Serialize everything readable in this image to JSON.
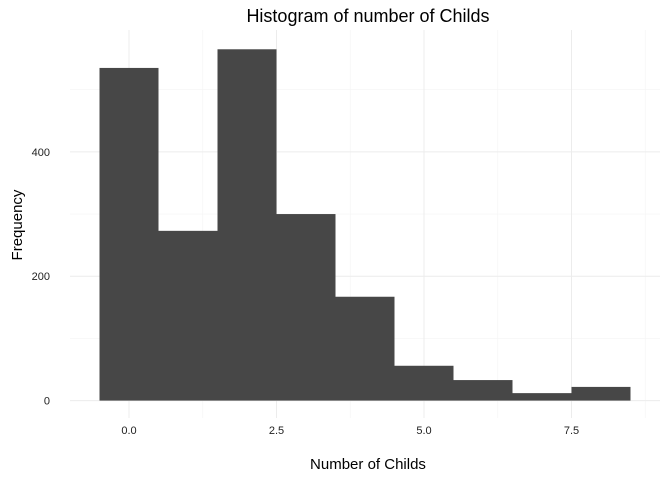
{
  "chart_data": {
    "type": "bar",
    "title": "Histogram of number of Childs",
    "xlabel": "Number of Childs",
    "ylabel": "Frequency",
    "bin_width": 1,
    "bins": [
      {
        "center": 0,
        "count": 535
      },
      {
        "center": 1,
        "count": 273
      },
      {
        "center": 2,
        "count": 565
      },
      {
        "center": 3,
        "count": 300
      },
      {
        "center": 4,
        "count": 167
      },
      {
        "center": 5,
        "count": 56
      },
      {
        "center": 6,
        "count": 33
      },
      {
        "center": 7,
        "count": 12
      },
      {
        "center": 8,
        "count": 22
      }
    ],
    "xlim": [
      -1.0,
      9.0
    ],
    "ylim": [
      -28,
      596
    ],
    "x_ticks": [
      0,
      2.5,
      5,
      7.5
    ],
    "x_tick_labels": [
      "0.0",
      "2.5",
      "5.0",
      "7.5"
    ],
    "y_ticks": [
      0,
      200,
      400
    ],
    "y_tick_labels": [
      "0",
      "200",
      "400"
    ],
    "bar_color": "#474747",
    "grid": true,
    "legend": "none"
  }
}
